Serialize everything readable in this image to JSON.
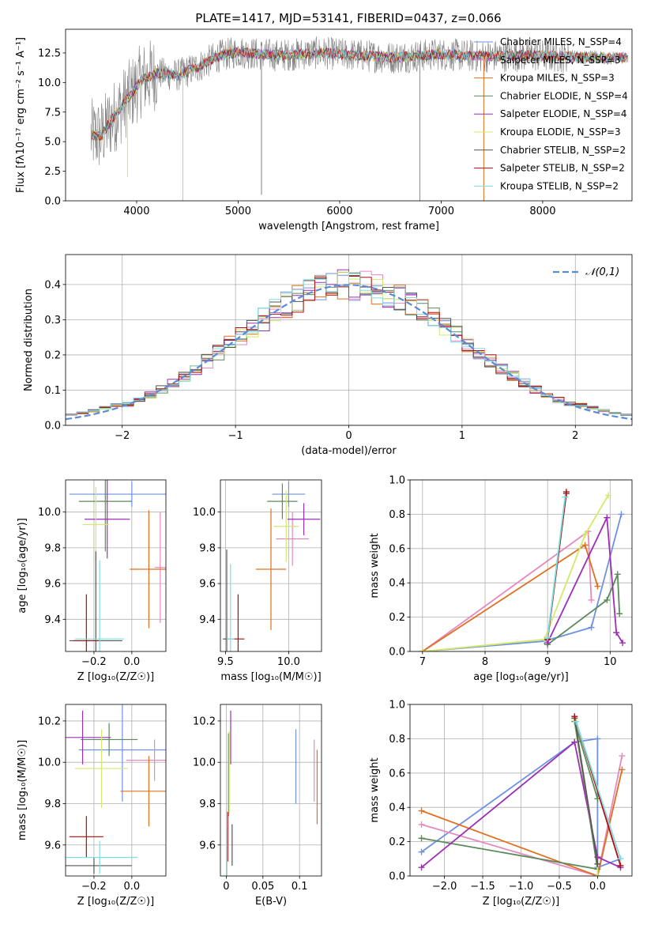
{
  "title": "PLATE=1417, MJD=53141, FIBERID=0437, z=0.066",
  "colors": {
    "chabrier_miles": "#6f92e0",
    "salpeter_miles": "#e58ac0",
    "kroupa_miles": "#e07020",
    "chabrier_elodie": "#5b8a5b",
    "salpeter_elodie": "#9b30b5",
    "kroupa_elodie": "#d4e86a",
    "chabrier_stelib": "#555555",
    "salpeter_stelib": "#b00c0c",
    "kroupa_stelib": "#7fdce0",
    "data_spectrum": "#808080",
    "grid": "#b0b0b0"
  },
  "chart_data": [
    {
      "type": "line",
      "panel": "spectrum",
      "xlabel": "wavelength [Angstrom, rest frame]",
      "ylabel": "Flux [fλ10⁻¹⁷ erg cm⁻² s⁻¹ A⁻¹]",
      "xlim": [
        3300,
        8880
      ],
      "ylim": [
        0,
        14.5
      ],
      "xticks": [
        4000,
        5000,
        6000,
        7000,
        8000
      ],
      "yticks": [
        0.0,
        2.5,
        5.0,
        7.5,
        10.0,
        12.5
      ],
      "legend": [
        "Chabrier MILES, N_SSP=4",
        "Salpeter MILES, N_SSP=3",
        "Kroupa MILES, N_SSP=3",
        "Chabrier ELODIE, N_SSP=4",
        "Salpeter ELODIE, N_SSP=4",
        "Kroupa ELODIE, N_SSP=3",
        "Chabrier STELIB, N_SSP=2",
        "Salpeter STELIB, N_SSP=2",
        "Kroupa STELIB, N_SSP=2"
      ],
      "legend_position": "right",
      "continuum_x": [
        3550,
        3650,
        3750,
        3900,
        4050,
        4200,
        4400,
        4600,
        4800,
        5000,
        5200,
        5400,
        5600,
        5800,
        6000,
        6200,
        6500,
        7000,
        7400,
        7800,
        8200,
        8600
      ],
      "continuum_y": [
        5.5,
        5.5,
        6.8,
        8.5,
        10.2,
        10.8,
        10.6,
        11.3,
        12.2,
        12.6,
        12.4,
        12.3,
        12.4,
        12.5,
        12.4,
        12.3,
        12.1,
        12.4,
        12.2,
        12.3,
        12.2,
        12.1
      ]
    },
    {
      "type": "histogram",
      "panel": "residuals",
      "xlabel": "(data-model)/error",
      "ylabel": "Normed distribution",
      "xlim": [
        -2.5,
        2.5
      ],
      "ylim": [
        0,
        0.485
      ],
      "xticks": [
        -2,
        -1,
        0,
        1,
        2
      ],
      "yticks": [
        0.0,
        0.1,
        0.2,
        0.3,
        0.4
      ],
      "grid": true,
      "legend": [
        "𝒩(0,1)"
      ],
      "legend_position": "upper right"
    },
    {
      "type": "errorbar",
      "panel": "age-vs-Z",
      "xlabel": "Z [log₁₀(Z/Z☉)]",
      "ylabel": "age  [log₁₀(age/yr)]",
      "xlim": [
        -0.35,
        0.18
      ],
      "ylim": [
        9.22,
        10.18
      ],
      "xticks": [
        -0.2,
        0.0
      ],
      "yticks": [
        9.4,
        9.6,
        9.8,
        10.0
      ],
      "grid": true,
      "points": [
        {
          "x": 0.0,
          "xerr": 0.33,
          "y": 10.1,
          "yerr": 0.07
        },
        {
          "x": 0.15,
          "xerr": 0.03,
          "y": 9.69,
          "yerr": 0.31
        },
        {
          "x": 0.09,
          "xerr": 0.1,
          "y": 9.68,
          "yerr": 0.33
        },
        {
          "x": -0.14,
          "xerr": 0.14,
          "y": 10.06,
          "yerr": 0.28
        },
        {
          "x": -0.13,
          "xerr": 0.12,
          "y": 9.96,
          "yerr": 0.22
        },
        {
          "x": -0.19,
          "xerr": 0.07,
          "y": 9.93,
          "yerr": 0.21
        },
        {
          "x": -0.19,
          "xerr": 0.14,
          "y": 9.28,
          "yerr": 0.5
        },
        {
          "x": -0.24,
          "xerr": 0.07,
          "y": 9.28,
          "yerr": 0.26
        },
        {
          "x": -0.17,
          "xerr": 0.13,
          "y": 9.29,
          "yerr": 0.44
        }
      ]
    },
    {
      "type": "errorbar",
      "panel": "age-vs-mass",
      "xlabel": "mass [log₁₀(M/M☉)]",
      "ylabel": "",
      "xlim": [
        9.46,
        10.26
      ],
      "ylim": [
        9.22,
        10.18
      ],
      "xticks": [
        9.5,
        10.0
      ],
      "yticks": [
        9.4,
        9.6,
        9.8,
        10.0
      ],
      "grid": true,
      "points": [
        {
          "x": 10.0,
          "xerr": 0.13,
          "y": 10.1,
          "yerr": 0.07
        },
        {
          "x": 10.03,
          "xerr": 0.13,
          "y": 9.85,
          "yerr": 0.15
        },
        {
          "x": 9.86,
          "xerr": 0.12,
          "y": 9.68,
          "yerr": 0.34
        },
        {
          "x": 9.95,
          "xerr": 0.12,
          "y": 10.06,
          "yerr": 0.1
        },
        {
          "x": 10.12,
          "xerr": 0.13,
          "y": 9.96,
          "yerr": 0.09
        },
        {
          "x": 9.98,
          "xerr": 0.1,
          "y": 9.92,
          "yerr": 0.2
        },
        {
          "x": 9.51,
          "xerr": 0.03,
          "y": 9.29,
          "yerr": 0.5
        },
        {
          "x": 9.6,
          "xerr": 0.05,
          "y": 9.29,
          "yerr": 0.25
        },
        {
          "x": 9.54,
          "xerr": 0.03,
          "y": 9.29,
          "yerr": 0.42
        }
      ]
    },
    {
      "type": "line",
      "panel": "weight-vs-age",
      "xlabel": "age  [log₁₀(age/yr)]",
      "ylabel": "mass weight",
      "xlim": [
        6.8,
        10.35
      ],
      "ylim": [
        0,
        1.0
      ],
      "xticks": [
        7,
        8,
        9,
        10
      ],
      "yticks": [
        0.0,
        0.2,
        0.4,
        0.6,
        0.8,
        1.0
      ],
      "grid": true,
      "series": [
        {
          "x": [
            7.0,
            8.95,
            9.7,
            10.18
          ],
          "y": [
            0.0,
            0.06,
            0.14,
            0.8
          ]
        },
        {
          "x": [
            7.0,
            9.65,
            9.7
          ],
          "y": [
            0.0,
            0.7,
            0.3
          ]
        },
        {
          "x": [
            7.0,
            9.6,
            9.8
          ],
          "y": [
            0.0,
            0.62,
            0.38
          ]
        },
        {
          "x": [
            9.0,
            9.95,
            10.12,
            10.15
          ],
          "y": [
            0.04,
            0.3,
            0.45,
            0.22
          ]
        },
        {
          "x": [
            9.0,
            9.95,
            10.1,
            10.2
          ],
          "y": [
            0.05,
            0.78,
            0.11,
            0.05
          ]
        },
        {
          "x": [
            7.0,
            8.95,
            9.6,
            9.97
          ],
          "y": [
            0.0,
            0.07,
            0.68,
            0.91
          ]
        },
        {
          "x": [
            9.0,
            9.3
          ],
          "y": [
            0.07,
            0.92
          ]
        },
        {
          "x": [
            9.0,
            9.3
          ],
          "y": [
            0.07,
            0.93
          ]
        },
        {
          "x": [
            9.0,
            9.28
          ],
          "y": [
            0.08,
            0.9
          ]
        }
      ]
    },
    {
      "type": "errorbar",
      "panel": "mass-vs-Z",
      "xlabel": "Z [log₁₀(Z/Z☉)]",
      "ylabel": "mass [log₁₀(M/M☉)]",
      "xlim": [
        -0.35,
        0.18
      ],
      "ylim": [
        9.45,
        10.28
      ],
      "xticks": [
        -0.2,
        0.0
      ],
      "yticks": [
        9.6,
        9.8,
        10.0,
        10.2
      ],
      "grid": true,
      "points": [
        {
          "x": -0.05,
          "xerr": 0.23,
          "y": 10.06,
          "yerr": 0.25
        },
        {
          "x": 0.12,
          "xerr": 0.15,
          "y": 10.01,
          "yerr": 0.1
        },
        {
          "x": 0.09,
          "xerr": 0.15,
          "y": 9.86,
          "yerr": 0.17
        },
        {
          "x": -0.12,
          "xerr": 0.15,
          "y": 10.11,
          "yerr": 0.08
        },
        {
          "x": -0.26,
          "xerr": 0.15,
          "y": 10.12,
          "yerr": 0.13
        },
        {
          "x": -0.16,
          "xerr": 0.14,
          "y": 9.97,
          "yerr": 0.19
        },
        {
          "x": -0.2,
          "xerr": 0.2,
          "y": 9.5,
          "yerr": 0.04
        },
        {
          "x": -0.24,
          "xerr": 0.09,
          "y": 9.64,
          "yerr": 0.1
        },
        {
          "x": -0.17,
          "xerr": 0.2,
          "y": 9.54,
          "yerr": 0.08
        }
      ]
    },
    {
      "type": "errorbar",
      "panel": "mass-vs-EBV",
      "xlabel": "E(B-V)",
      "ylabel": "",
      "xlim": [
        -0.008,
        0.13
      ],
      "ylim": [
        9.45,
        10.28
      ],
      "xticks": [
        0.0,
        0.05,
        0.1
      ],
      "yticks": [
        9.6,
        9.8,
        10.0,
        10.2
      ],
      "grid": true,
      "points": [
        {
          "x": 0.095,
          "y": 9.98,
          "yerr": 0.18
        },
        {
          "x": 0.12,
          "y": 9.96,
          "yerr": 0.15
        },
        {
          "x": 0.124,
          "y": 9.88,
          "yerr": 0.18
        },
        {
          "x": 0.003,
          "y": 9.94,
          "yerr": 0.2
        },
        {
          "x": 0.006,
          "y": 10.12,
          "yerr": 0.13
        },
        {
          "x": 0.004,
          "y": 9.95,
          "yerr": 0.2
        },
        {
          "x": 0.008,
          "y": 9.6,
          "yerr": 0.1
        },
        {
          "x": 0.002,
          "y": 9.64,
          "yerr": 0.12
        },
        {
          "x": 0.001,
          "y": 9.55,
          "yerr": 0.12
        }
      ]
    },
    {
      "type": "line",
      "panel": "weight-vs-Z",
      "xlabel": "Z [log₁₀(Z/Z☉)]",
      "ylabel": "mass weight",
      "xlim": [
        -2.45,
        0.45
      ],
      "ylim": [
        0,
        1.0
      ],
      "xticks": [
        -2.0,
        -1.5,
        -1.0,
        -0.5,
        0.0
      ],
      "yticks": [
        0.0,
        0.2,
        0.4,
        0.6,
        0.8,
        1.0
      ],
      "grid": true,
      "series": [
        {
          "x": [
            -2.3,
            -0.3,
            0.0,
            0.0,
            0.3
          ],
          "y": [
            0.14,
            0.78,
            0.8,
            0.05,
            0.1
          ]
        },
        {
          "x": [
            -2.3,
            0.0,
            0.32
          ],
          "y": [
            0.3,
            0.0,
            0.7
          ]
        },
        {
          "x": [
            -2.3,
            0.0,
            0.32
          ],
          "y": [
            0.38,
            0.0,
            0.62
          ]
        },
        {
          "x": [
            -2.3,
            0.0,
            -0.3,
            0.0
          ],
          "y": [
            0.22,
            0.04,
            0.9,
            0.45
          ]
        },
        {
          "x": [
            -2.3,
            -0.3,
            0.0,
            0.3
          ],
          "y": [
            0.05,
            0.78,
            0.11,
            0.05
          ]
        },
        {
          "x": [
            -0.3,
            0.0,
            0.0
          ],
          "y": [
            0.91,
            0.07,
            0.0
          ]
        },
        {
          "x": [
            -0.3,
            0.0
          ],
          "y": [
            0.92,
            0.07
          ]
        },
        {
          "x": [
            -0.3,
            0.3
          ],
          "y": [
            0.93,
            0.06
          ]
        },
        {
          "x": [
            -0.28,
            0.3
          ],
          "y": [
            0.9,
            0.1
          ]
        }
      ]
    }
  ]
}
